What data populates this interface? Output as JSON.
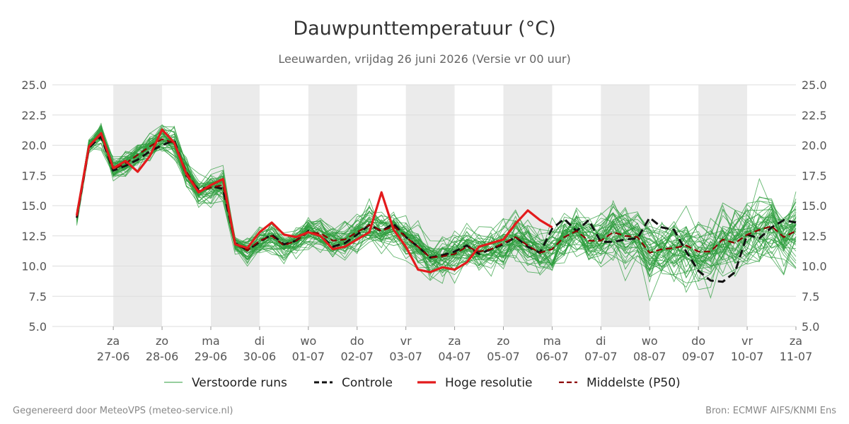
{
  "chart_data": {
    "type": "line",
    "title": "Dauwpunttemperatuur (°C)",
    "subtitle": "Leeuwarden, vrijdag 26 juni 2026 (Versie vr 00 uur)",
    "ylim": [
      5.0,
      25.0
    ],
    "y_ticks": [
      "5.0",
      "7.5",
      "10.0",
      "12.5",
      "15.0",
      "17.5",
      "20.0",
      "22.5",
      "25.0"
    ],
    "x_unit": "days since vr 26-06 00 uur",
    "xlim": [
      -0.5,
      14.75
    ],
    "x_ticks": [
      {
        "day": "za",
        "date": "27-06",
        "x": 0.75
      },
      {
        "day": "zo",
        "date": "28-06",
        "x": 1.75
      },
      {
        "day": "ma",
        "date": "29-06",
        "x": 2.75
      },
      {
        "day": "di",
        "date": "30-06",
        "x": 3.75
      },
      {
        "day": "wo",
        "date": "01-07",
        "x": 4.75
      },
      {
        "day": "do",
        "date": "02-07",
        "x": 5.75
      },
      {
        "day": "vr",
        "date": "03-07",
        "x": 6.75
      },
      {
        "day": "za",
        "date": "04-07",
        "x": 7.75
      },
      {
        "day": "zo",
        "date": "05-07",
        "x": 8.75
      },
      {
        "day": "ma",
        "date": "06-07",
        "x": 9.75
      },
      {
        "day": "di",
        "date": "07-07",
        "x": 10.75
      },
      {
        "day": "wo",
        "date": "08-07",
        "x": 11.75
      },
      {
        "day": "do",
        "date": "09-07",
        "x": 12.75
      },
      {
        "day": "vr",
        "date": "10-07",
        "x": 13.75
      },
      {
        "day": "za",
        "date": "11-07",
        "x": 14.75
      }
    ],
    "shaded_bands": [
      [
        0.75,
        1.75
      ],
      [
        2.75,
        3.75
      ],
      [
        4.75,
        5.75
      ],
      [
        6.75,
        7.75
      ],
      [
        8.75,
        9.75
      ],
      [
        10.75,
        11.75
      ],
      [
        12.75,
        13.75
      ]
    ],
    "grid": true,
    "legend_position": "bottom",
    "legend": [
      {
        "label": "Verstoorde runs",
        "color": "#2e9e3e",
        "style": "thin"
      },
      {
        "label": "Controle",
        "color": "#111111",
        "style": "dashed"
      },
      {
        "label": "Hoge resolutie",
        "color": "#e31a1c",
        "style": "thick"
      },
      {
        "label": "Middelste (P50)",
        "color": "#8b0000",
        "style": "dashed"
      }
    ],
    "series": [
      {
        "name": "Hoge resolutie",
        "color": "#e31a1c",
        "x": [
          0,
          0.25,
          0.5,
          0.75,
          1.0,
          1.25,
          1.5,
          1.75,
          2.0,
          2.25,
          2.5,
          2.75,
          3.0,
          3.25,
          3.5,
          3.75,
          4.0,
          4.25,
          4.5,
          4.75,
          5.0,
          5.25,
          5.5,
          5.75,
          6.0,
          6.25,
          6.5,
          6.75,
          7.0,
          7.25,
          7.5,
          7.75,
          8.0,
          8.25,
          8.5,
          8.75,
          9.0,
          9.25,
          9.5,
          9.75
        ],
        "y": [
          14.2,
          19.9,
          21.0,
          18.1,
          18.7,
          17.8,
          19.1,
          21.3,
          20.2,
          17.6,
          16.1,
          16.7,
          17.2,
          11.8,
          11.5,
          12.8,
          13.6,
          12.6,
          12.4,
          12.8,
          12.5,
          11.4,
          11.6,
          12.2,
          12.8,
          16.1,
          13.0,
          11.6,
          9.7,
          9.5,
          9.9,
          9.7,
          10.3,
          11.6,
          11.9,
          12.2,
          13.5,
          14.6,
          13.8,
          13.2
        ]
      },
      {
        "name": "Controle",
        "color": "#111111",
        "x": [
          0,
          0.25,
          0.5,
          0.75,
          1.0,
          1.25,
          1.5,
          1.75,
          2.0,
          2.25,
          2.5,
          2.75,
          3.0,
          3.25,
          3.5,
          3.75,
          4.0,
          4.25,
          4.5,
          4.75,
          5.0,
          5.25,
          5.5,
          5.75,
          6.0,
          6.25,
          6.5,
          6.75,
          7.0,
          7.25,
          7.5,
          7.75,
          8.0,
          8.25,
          8.5,
          8.75,
          9.0,
          9.25,
          9.5,
          9.75,
          10.0,
          10.25,
          10.5,
          10.75,
          11.0,
          11.25,
          11.5,
          11.75,
          12.0,
          12.25,
          12.5,
          12.75,
          13.0,
          13.25,
          13.5,
          13.75,
          14.0,
          14.25,
          14.5,
          14.75
        ],
        "y": [
          14.0,
          19.8,
          20.7,
          17.9,
          18.3,
          18.8,
          19.5,
          20.0,
          20.4,
          17.5,
          16.3,
          16.6,
          16.4,
          11.9,
          11.3,
          12.0,
          12.6,
          11.8,
          12.1,
          12.9,
          12.5,
          11.6,
          11.9,
          12.6,
          13.4,
          12.9,
          13.5,
          12.4,
          11.6,
          10.7,
          10.9,
          11.2,
          11.7,
          11.0,
          11.4,
          11.8,
          12.4,
          11.6,
          11.1,
          13.1,
          13.9,
          12.9,
          13.8,
          12.0,
          12.0,
          12.2,
          12.3,
          14.0,
          13.2,
          13.0,
          11.2,
          9.6,
          8.8,
          8.7,
          9.5,
          12.6,
          12.3,
          13.2,
          13.8,
          13.6
        ]
      },
      {
        "name": "Middelste (P50)",
        "color": "#8b0000",
        "x": [
          0,
          0.25,
          0.5,
          0.75,
          1.0,
          1.25,
          1.5,
          1.75,
          2.0,
          2.25,
          2.5,
          2.75,
          3.0,
          3.25,
          3.5,
          3.75,
          4.0,
          4.25,
          4.5,
          4.75,
          5.0,
          5.25,
          5.5,
          5.75,
          6.0,
          6.25,
          6.5,
          6.75,
          7.0,
          7.25,
          7.5,
          7.75,
          8.0,
          8.25,
          8.5,
          8.75,
          9.0,
          9.25,
          9.5,
          9.75,
          10.0,
          10.25,
          10.5,
          10.75,
          11.0,
          11.25,
          11.5,
          11.75,
          12.0,
          12.25,
          12.5,
          12.75,
          13.0,
          13.25,
          13.5,
          13.75,
          14.0,
          14.25,
          14.5,
          14.75
        ],
        "y": [
          14.1,
          19.9,
          20.9,
          18.0,
          18.5,
          19.2,
          19.9,
          20.5,
          20.2,
          17.8,
          16.2,
          16.5,
          16.7,
          11.8,
          11.3,
          12.1,
          12.5,
          11.7,
          12.1,
          12.8,
          12.7,
          12.1,
          12.2,
          12.8,
          13.4,
          12.9,
          13.3,
          12.4,
          11.6,
          10.7,
          10.8,
          11.0,
          11.6,
          11.2,
          11.4,
          11.9,
          12.4,
          11.7,
          11.1,
          11.4,
          12.4,
          12.9,
          12.1,
          12.1,
          12.8,
          12.5,
          12.4,
          11.1,
          11.4,
          11.5,
          11.7,
          11.2,
          11.2,
          12.2,
          11.9,
          12.6,
          13.0,
          13.3,
          12.4,
          12.9
        ]
      }
    ]
  },
  "footer": {
    "left": "Gegenereerd door MeteoVPS (meteo-service.nl)",
    "right": "Bron: ECMWF AIFS/KNMI Ens"
  }
}
